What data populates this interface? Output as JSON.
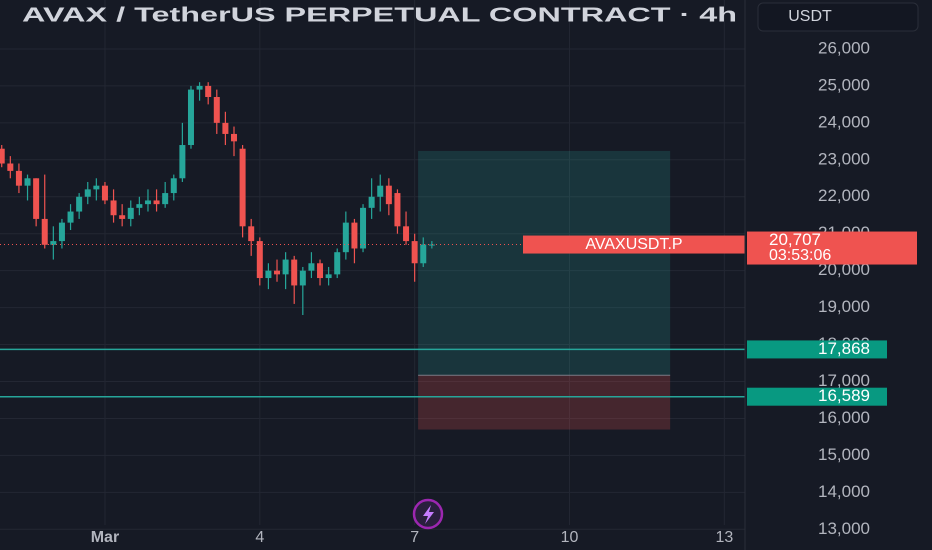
{
  "chart_data": {
    "type": "candlestick",
    "title": "AVAX / TetherUS PERPETUAL CONTRACT · 4h",
    "currency": "USDT",
    "symbol": "AVAXUSDT.P",
    "up_color": "#26a69a",
    "down_color": "#ef5350",
    "ohlc": [
      [
        23300,
        23400,
        22800,
        22900
      ],
      [
        22900,
        23100,
        22500,
        22700
      ],
      [
        22700,
        22900,
        22100,
        22300
      ],
      [
        22300,
        22600,
        21900,
        22500
      ],
      [
        22500,
        22500,
        21200,
        21400
      ],
      [
        21400,
        22600,
        20600,
        20700
      ],
      [
        20700,
        21200,
        20300,
        20800
      ],
      [
        20800,
        21400,
        20600,
        21300
      ],
      [
        21300,
        21800,
        21100,
        21600
      ],
      [
        21600,
        22100,
        21400,
        22000
      ],
      [
        22000,
        22400,
        21800,
        22200
      ],
      [
        22200,
        22500,
        21900,
        22300
      ],
      [
        22300,
        22400,
        21800,
        21900
      ],
      [
        21900,
        22200,
        21300,
        21500
      ],
      [
        21500,
        21800,
        21200,
        21400
      ],
      [
        21400,
        21900,
        21200,
        21700
      ],
      [
        21700,
        22000,
        21500,
        21800
      ],
      [
        21800,
        22200,
        21600,
        21900
      ],
      [
        21900,
        22200,
        21600,
        21800
      ],
      [
        21800,
        22400,
        21700,
        22100
      ],
      [
        22100,
        22600,
        21900,
        22500
      ],
      [
        22500,
        24000,
        22400,
        23400
      ],
      [
        23400,
        25000,
        23300,
        24900
      ],
      [
        24900,
        25100,
        24600,
        25000
      ],
      [
        25000,
        25100,
        24500,
        24700
      ],
      [
        24700,
        24900,
        23700,
        24000
      ],
      [
        24000,
        24300,
        23400,
        23700
      ],
      [
        23700,
        23900,
        23100,
        23500
      ],
      [
        23300,
        23400,
        20900,
        21200
      ],
      [
        21200,
        21400,
        20400,
        20800
      ],
      [
        20800,
        20900,
        19600,
        19800
      ],
      [
        19800,
        20200,
        19500,
        20000
      ],
      [
        20000,
        20300,
        19700,
        19900
      ],
      [
        19900,
        20500,
        19500,
        20300
      ],
      [
        20300,
        20400,
        19100,
        19600
      ],
      [
        19600,
        20100,
        18800,
        20000
      ],
      [
        20000,
        20500,
        19800,
        20200
      ],
      [
        20200,
        20300,
        19600,
        19800
      ],
      [
        19800,
        20100,
        19600,
        19900
      ],
      [
        19900,
        20600,
        19800,
        20500
      ],
      [
        20500,
        21600,
        20300,
        21300
      ],
      [
        21300,
        21400,
        20200,
        20600
      ],
      [
        20600,
        21800,
        20500,
        21700
      ],
      [
        21700,
        22500,
        21400,
        22000
      ],
      [
        22000,
        22600,
        21600,
        22300
      ],
      [
        22300,
        22500,
        21500,
        21800
      ],
      [
        22100,
        22200,
        21000,
        21200
      ],
      [
        21200,
        21600,
        20700,
        20800
      ],
      [
        20800,
        21000,
        19700,
        20200
      ],
      [
        20200,
        20900,
        20100,
        20707
      ],
      [
        20707,
        20800,
        20600,
        20707
      ]
    ],
    "xlim": [
      -0.2,
      86.4
    ],
    "xticks": [
      {
        "value": 12,
        "label": "Mar"
      },
      {
        "value": 30,
        "label": "4"
      },
      {
        "value": 48,
        "label": "7"
      },
      {
        "value": 66,
        "label": "10"
      },
      {
        "value": 84,
        "label": "13"
      }
    ],
    "ylim": [
      12440,
      27325
    ],
    "yticks": [
      {
        "value": 13000,
        "label": "13,000"
      },
      {
        "value": 14000,
        "label": "14,000"
      },
      {
        "value": 15000,
        "label": "15,000"
      },
      {
        "value": 16000,
        "label": "16,000"
      },
      {
        "value": 17000,
        "label": "17,000"
      },
      {
        "value": 18000,
        "label": "18,000"
      },
      {
        "value": 19000,
        "label": "19,000"
      },
      {
        "value": 20000,
        "label": "20,000"
      },
      {
        "value": 21000,
        "label": "21,000"
      },
      {
        "value": 22000,
        "label": "22,000"
      },
      {
        "value": 23000,
        "label": "23,000"
      },
      {
        "value": 24000,
        "label": "24,000"
      },
      {
        "value": 25000,
        "label": "25,000"
      },
      {
        "value": 26000,
        "label": "26,000"
      }
    ],
    "grid": true,
    "last_price": {
      "value": 20707,
      "label": "20,707"
    },
    "countdown": "03:53:06",
    "hlines": [
      {
        "value": 17868,
        "label": "17,868"
      },
      {
        "value": 16589,
        "label": "16,589"
      }
    ],
    "hline_color": "#26a69a",
    "position_tool": {
      "start": 48.4,
      "end": 77.7,
      "target": 23240,
      "entry": 17170,
      "stop": 15700
    }
  }
}
